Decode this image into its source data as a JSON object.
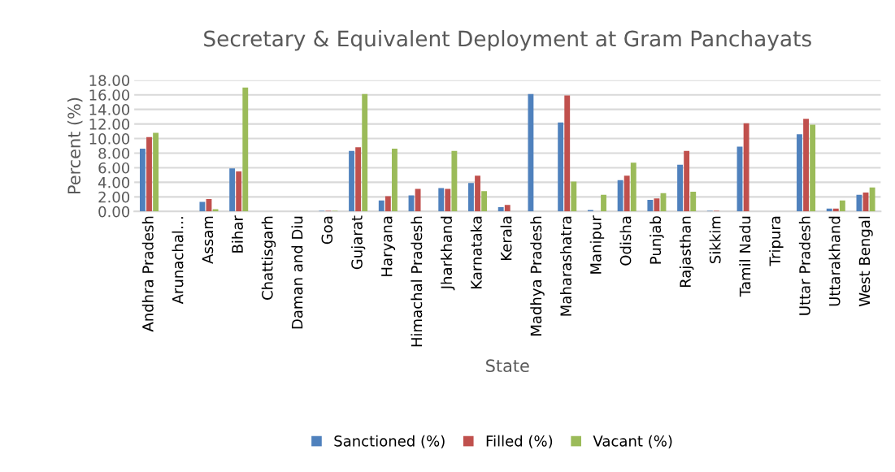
{
  "chart_data": {
    "type": "bar",
    "title": "Secretary & Equivalent Deployment at Gram Panchayats",
    "xlabel": "State",
    "ylabel": "Percent (%)",
    "categories": [
      "Andhra Pradesh",
      "Arunachal…",
      "Assam",
      "Bihar",
      "Chattisgarh",
      "Daman and Diu",
      "Goa",
      "Gujarat",
      "Haryana",
      "Himachal Pradesh",
      "Jharkhand",
      "Karnataka",
      "Kerala",
      "Madhya Pradesh",
      "Maharashatra",
      "Manipur",
      "Odisha",
      "Punjab",
      "Rajasthan",
      "Sikkim",
      "Tamil Nadu",
      "Tripura",
      "Uttar Pradesh",
      "Uttarakhand",
      "West Bengal"
    ],
    "series": [
      {
        "name": "Sanctioned (%)",
        "color": "#4f81bd",
        "values": [
          8.6,
          0,
          1.3,
          5.9,
          0,
          0,
          0.1,
          8.3,
          1.5,
          2.2,
          3.2,
          3.9,
          0.6,
          16.1,
          12.2,
          0.2,
          4.3,
          1.6,
          6.4,
          0.1,
          8.9,
          0,
          10.6,
          0.4,
          2.3
        ]
      },
      {
        "name": "Filled (%)",
        "color": "#c0504d",
        "values": [
          10.2,
          0,
          1.7,
          5.5,
          0,
          0,
          0.1,
          8.8,
          2.1,
          3.1,
          3.1,
          4.9,
          0.9,
          0,
          15.9,
          0,
          4.9,
          1.8,
          8.3,
          0.1,
          12.1,
          0,
          12.7,
          0.4,
          2.6
        ]
      },
      {
        "name": "Vacant (%)",
        "color": "#9bbb59",
        "values": [
          10.8,
          0,
          0.3,
          17.0,
          0,
          0,
          0.1,
          16.1,
          8.6,
          0,
          8.3,
          2.8,
          0,
          0,
          4.1,
          2.3,
          6.7,
          2.5,
          2.7,
          0,
          0,
          0,
          11.9,
          1.5,
          3.3
        ]
      }
    ],
    "ylim": [
      0,
      18
    ],
    "yticks": [
      {
        "value": 0,
        "label": "0.00"
      },
      {
        "value": 2,
        "label": "2.00"
      },
      {
        "value": 4,
        "label": "4.00"
      },
      {
        "value": 6,
        "label": "6.00"
      },
      {
        "value": 8,
        "label": "8.00"
      },
      {
        "value": 10,
        "label": "10.00"
      },
      {
        "value": 12,
        "label": "12.00"
      },
      {
        "value": 14,
        "label": "14.00"
      },
      {
        "value": 16,
        "label": "16.00"
      },
      {
        "value": 18,
        "label": "18.00"
      }
    ],
    "grid": "y",
    "legend": "bottom"
  }
}
